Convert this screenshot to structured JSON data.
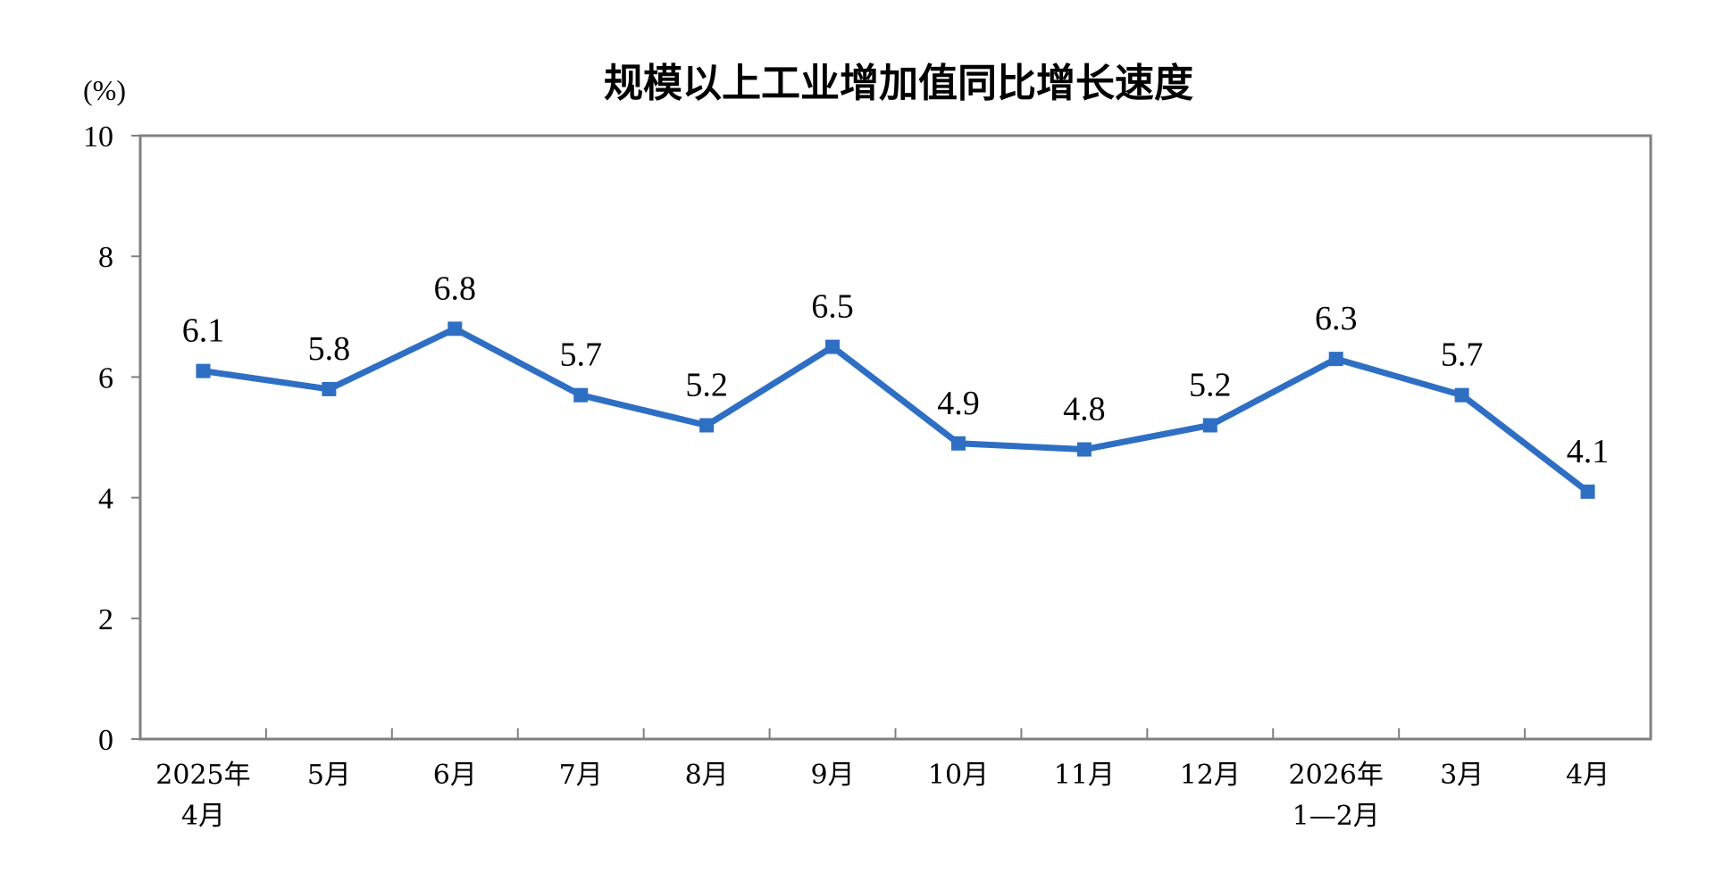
{
  "chart_data": {
    "type": "line",
    "title": "规模以上工业增加值同比增长速度",
    "ylabel": "(%)",
    "xlabel": "",
    "ylim": [
      0,
      10
    ],
    "yticks": [
      "0",
      "2",
      "4",
      "6",
      "8",
      "10"
    ],
    "grid": false,
    "legend": "none",
    "categories": [
      [
        "2025年",
        "4月"
      ],
      [
        "5月"
      ],
      [
        "6月"
      ],
      [
        "7月"
      ],
      [
        "8月"
      ],
      [
        "9月"
      ],
      [
        "10月"
      ],
      [
        "11月"
      ],
      [
        "12月"
      ],
      [
        "2026年",
        "1—2月"
      ],
      [
        "3月"
      ],
      [
        "4月"
      ]
    ],
    "series": [
      {
        "values": [
          6.1,
          5.8,
          6.8,
          5.7,
          5.2,
          6.5,
          4.9,
          4.8,
          5.2,
          6.3,
          5.7,
          4.1
        ],
        "labels": [
          "6.1",
          "5.8",
          "6.8",
          "5.7",
          "5.2",
          "6.5",
          "4.9",
          "4.8",
          "5.2",
          "6.3",
          "5.7",
          "4.1"
        ],
        "color": "#2e6fc4"
      }
    ],
    "axis_color": "#808080"
  }
}
